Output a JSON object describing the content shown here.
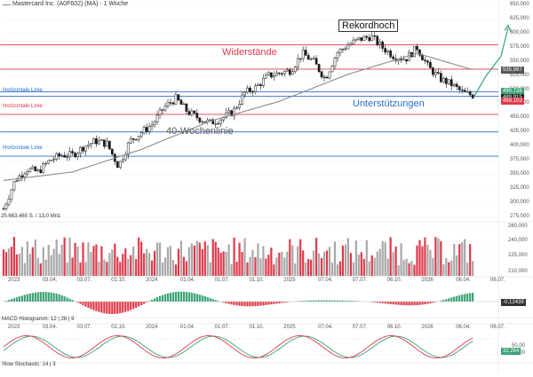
{
  "header": {
    "title": "Mastercard Inc. (A0F602) (MA) - 1 Woche"
  },
  "price_panel": {
    "y_ticks": [
      "650,000",
      "625,000",
      "600,000",
      "575,000",
      "550,000",
      "525,000",
      "500,000",
      "475,000",
      "450,000",
      "425,000",
      "400,000",
      "375,000",
      "350,000",
      "325,000",
      "300,000",
      "275,000"
    ],
    "price_badges": [
      {
        "text": "535,997",
        "color": "#555555"
      },
      {
        "text": "490,728",
        "color": "#3ba374"
      },
      {
        "text": "489,915",
        "color": "#222222"
      },
      {
        "text": "489,103",
        "color": "#e0394a"
      }
    ],
    "annotations": {
      "resistance": "Widerstände",
      "support": "Unterstützungen",
      "ma40": "40-Wochenlinie",
      "record": "Rekordhoch",
      "horizontal_line_1": "Horizontale Linie",
      "horizontal_line_2": "Horizontale Linie",
      "horizontal_line_3": "Horizontale Linie"
    }
  },
  "volume_panel": {
    "label": "25.663.465 S. / 13,0 Mrd.",
    "y_ticks": [
      "260,000",
      "240,000",
      "225,000",
      "210,000"
    ]
  },
  "x_axis": {
    "labels": [
      "2023",
      "03.04.",
      "03.07.",
      "02.10.",
      "2024",
      "01.04.",
      "01.07.",
      "01.10.",
      "2025",
      "07.04.",
      "07.07.",
      "06.10.",
      "2026",
      "06.04.",
      "06.07."
    ]
  },
  "macd_panel": {
    "label": "MACD Histogramm: 12 | 26 | 9",
    "value_badge": "-0,12439"
  },
  "stoch_panel": {
    "label": "Slow Stochastic: 14 | 3",
    "y_ticks": [
      "50,00",
      "25,00"
    ],
    "value_badge": "32,264"
  },
  "colors": {
    "up": "#1a1a1a",
    "down": "#1a1a1a",
    "ma": "#8a8a8a",
    "resistance": "#e0394a",
    "support": "#2e6fd0",
    "vol_up": "#a8a8a8",
    "vol_down": "#e0394a",
    "macd_pos": "#3ba374",
    "macd_neg": "#e0394a",
    "stoch_k": "#e0394a",
    "stoch_d": "#3ba374",
    "forecast": "#3ba374"
  },
  "chart_data": [
    {
      "type": "candlestick",
      "title": "Mastercard Inc. (A0F602) (MA) - 1 Woche",
      "ylim": [
        270,
        650
      ],
      "x_range": [
        "2022-12",
        "2026-07"
      ],
      "weekly_close_path": [
        {
          "date": "2022-12",
          "value": 290
        },
        {
          "date": "2023-01",
          "value": 340
        },
        {
          "date": "2023-02",
          "value": 360
        },
        {
          "date": "2023-03",
          "value": 355
        },
        {
          "date": "2023-04",
          "value": 375
        },
        {
          "date": "2023-05",
          "value": 385
        },
        {
          "date": "2023-06",
          "value": 385
        },
        {
          "date": "2023-07",
          "value": 400
        },
        {
          "date": "2023-08",
          "value": 410
        },
        {
          "date": "2023-09",
          "value": 405
        },
        {
          "date": "2023-10",
          "value": 365
        },
        {
          "date": "2023-11",
          "value": 410
        },
        {
          "date": "2023-12",
          "value": 425
        },
        {
          "date": "2024-01",
          "value": 440
        },
        {
          "date": "2024-02",
          "value": 470
        },
        {
          "date": "2024-03",
          "value": 485
        },
        {
          "date": "2024-04",
          "value": 462
        },
        {
          "date": "2024-05",
          "value": 450
        },
        {
          "date": "2024-06",
          "value": 442
        },
        {
          "date": "2024-07",
          "value": 450
        },
        {
          "date": "2024-08",
          "value": 462
        },
        {
          "date": "2024-09",
          "value": 495
        },
        {
          "date": "2024-10",
          "value": 505
        },
        {
          "date": "2024-11",
          "value": 525
        },
        {
          "date": "2024-12",
          "value": 530
        },
        {
          "date": "2025-01",
          "value": 535
        },
        {
          "date": "2025-02",
          "value": 565
        },
        {
          "date": "2025-03",
          "value": 550
        },
        {
          "date": "2025-04",
          "value": 520
        },
        {
          "date": "2025-05",
          "value": 565
        },
        {
          "date": "2025-06",
          "value": 580
        },
        {
          "date": "2025-07",
          "value": 590
        },
        {
          "date": "2025-08",
          "value": 595
        },
        {
          "date": "2025-09",
          "value": 575
        },
        {
          "date": "2025-10",
          "value": 560
        },
        {
          "date": "2025-11",
          "value": 555
        },
        {
          "date": "2025-12",
          "value": 575
        },
        {
          "date": "2026-01",
          "value": 540
        },
        {
          "date": "2026-02",
          "value": 520
        },
        {
          "date": "2026-03",
          "value": 510
        },
        {
          "date": "2026-04",
          "value": 495
        },
        {
          "date": "2026-05",
          "value": 490
        }
      ],
      "moving_average_40w": [
        {
          "date": "2022-12",
          "value": 340
        },
        {
          "date": "2023-06",
          "value": 355
        },
        {
          "date": "2023-12",
          "value": 395
        },
        {
          "date": "2024-06",
          "value": 445
        },
        {
          "date": "2024-12",
          "value": 480
        },
        {
          "date": "2025-06",
          "value": 528
        },
        {
          "date": "2025-12",
          "value": 565
        },
        {
          "date": "2026-05",
          "value": 535
        }
      ],
      "resistance_lines": [
        580,
        537
      ],
      "support_lines": [
        497,
        489,
        457,
        426,
        383
      ],
      "forecast": [
        {
          "date": "2026-05",
          "value": 490
        },
        {
          "date": "2026-06",
          "value": 525
        },
        {
          "date": "2026-07",
          "value": 560
        },
        {
          "date": "2026-07",
          "value": 610
        }
      ]
    },
    {
      "type": "bar",
      "name": "Volumen",
      "ylim": [
        210,
        260
      ]
    },
    {
      "type": "bar",
      "name": "MACD Histogramm",
      "ylim": [
        -1,
        1
      ]
    },
    {
      "type": "line",
      "name": "Slow Stochastic",
      "ylim": [
        0,
        100
      ]
    }
  ]
}
